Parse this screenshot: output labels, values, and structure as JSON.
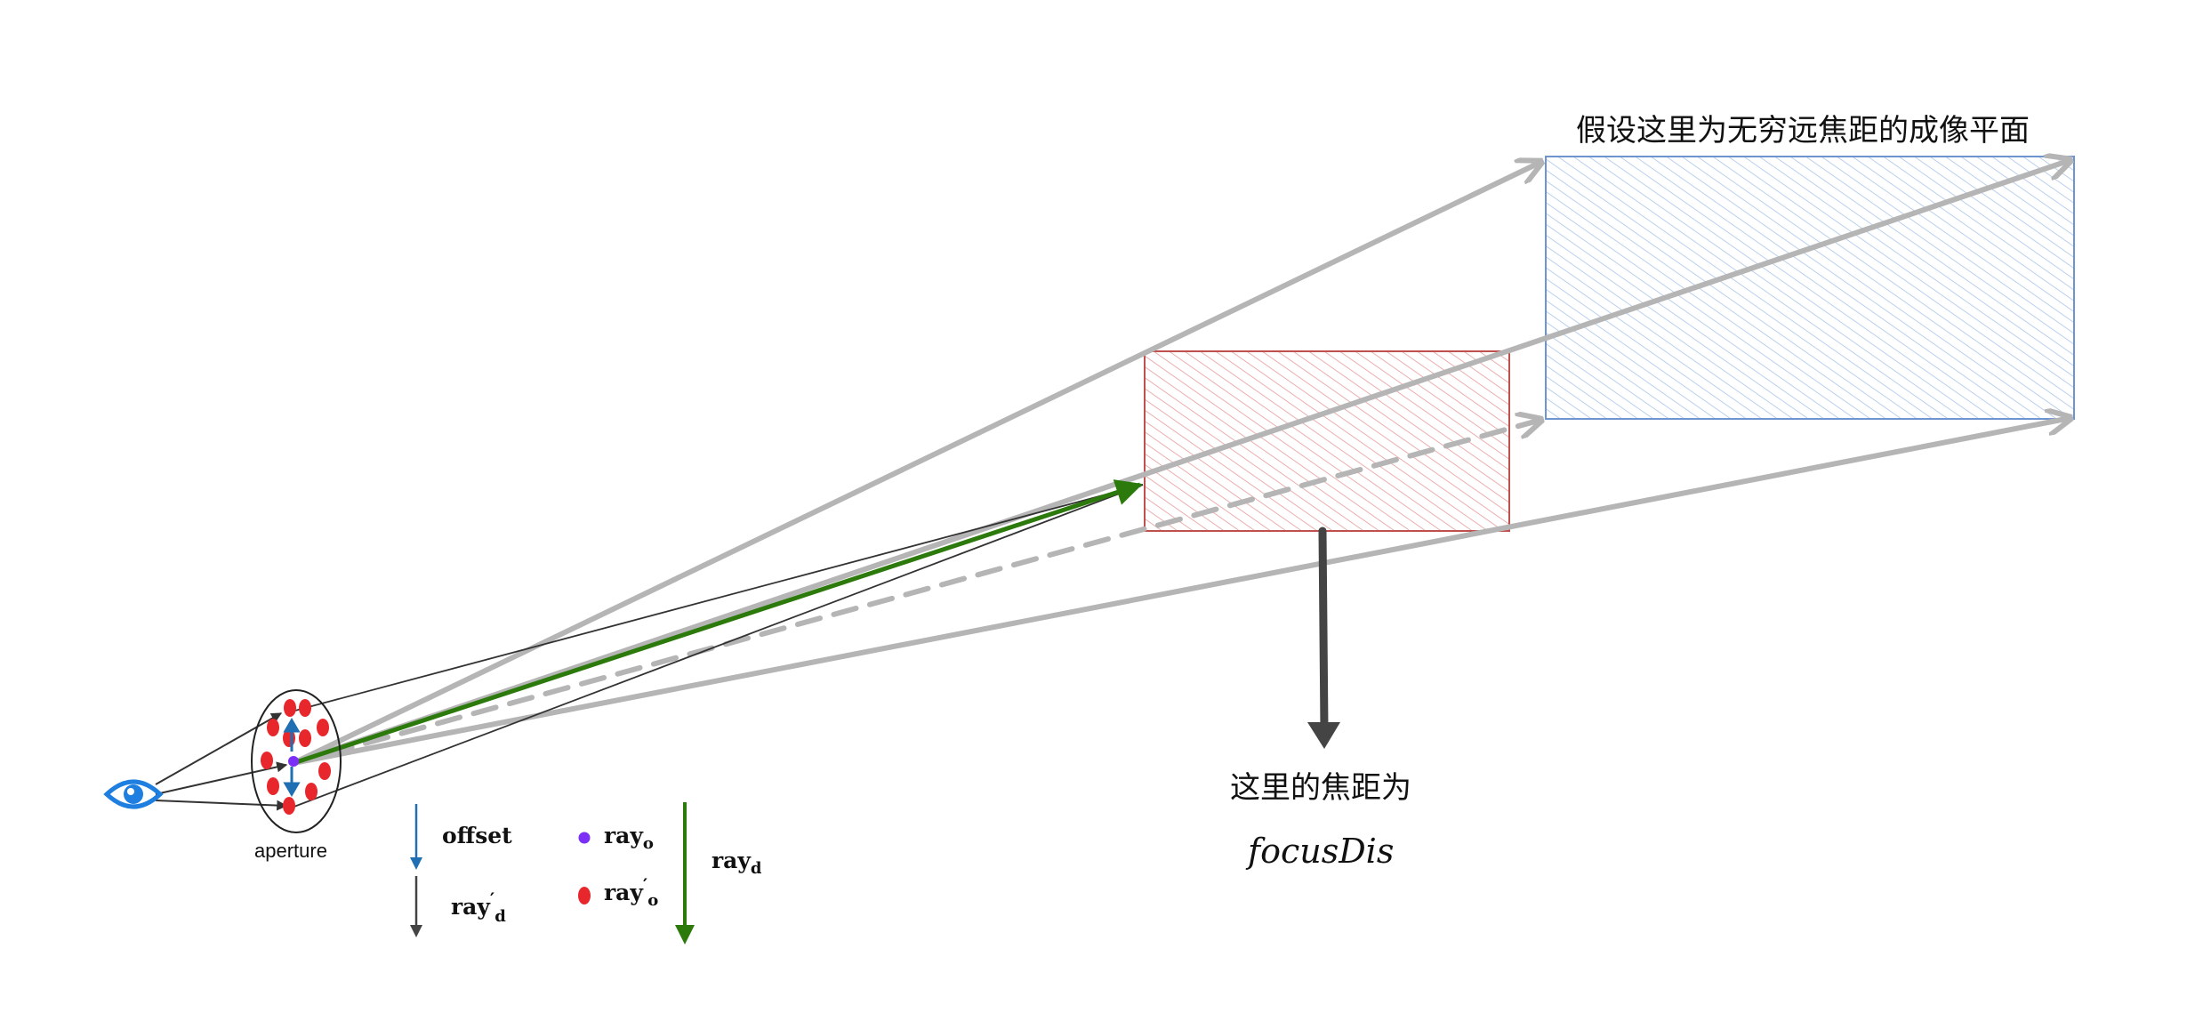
{
  "labels": {
    "infinity_plane": "假设这里为无穷远焦距的成像平面",
    "focus_note": "这里的焦距为",
    "focus_var": "focusDis",
    "aperture": "aperture"
  },
  "legend": {
    "offset": "offset",
    "ray": "ray",
    "sub_o": "o",
    "sub_d": "d",
    "prime": "′"
  },
  "colors": {
    "gray_ray": "#b5b5b5",
    "dark_ray": "#333333",
    "green_ray": "#2b7a0b",
    "blue_offset": "#1f6fb2",
    "purple_origin": "#7b2ff7",
    "red_sample": "#e8272c",
    "red_plane_fill": "#f4b6b6",
    "red_plane_stroke": "#c0504d",
    "blue_plane_fill": "#bcd4f2",
    "blue_plane_stroke": "#6f95d0",
    "eye": "#1f7fe0",
    "focus_arrow": "#444444"
  },
  "icons": [
    "eye-icon"
  ]
}
